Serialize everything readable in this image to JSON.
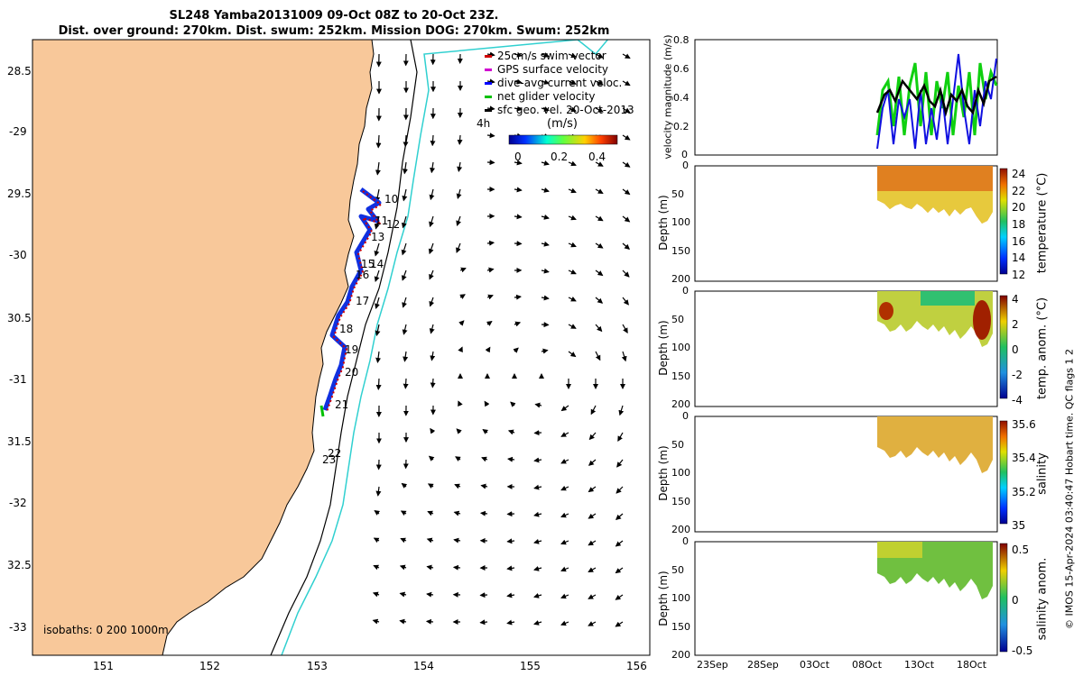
{
  "title": {
    "line1": "SL248 Yamba20131009 09-Oct 08Z to 20-Oct 23Z.",
    "line2": "Dist. over ground: 270km. Dist. swum: 252km. Mission DOG: 270km. Swum: 252km"
  },
  "map": {
    "lat_ticks": [
      "28.5",
      "-29",
      "29.5",
      "-30",
      "30.5",
      "-31",
      "31.5",
      "-32",
      "32.5",
      "-33"
    ],
    "lon_ticks": [
      "151",
      "152",
      "153",
      "154",
      "155",
      "156"
    ],
    "legend": [
      {
        "label": "25cm/s swim vector",
        "color": "#d00000"
      },
      {
        "label": "GPS surface velocity",
        "color": "#d000d0"
      },
      {
        "label": "dive-avg current veloc.",
        "color": "#0000ff"
      },
      {
        "label": "net glider velocity",
        "color": "#00c000"
      },
      {
        "label": "sfc geo. vel. 20-Oct-2013",
        "color": "#000000"
      }
    ],
    "colorbar": {
      "unit": "(m/s)",
      "ticks": [
        "0",
        "0.2",
        "0.4"
      ]
    },
    "label_4h": "4h",
    "isobaths_label": "isobaths: 0   200  1000m",
    "day_labels": [
      "10",
      "11",
      "12",
      "13",
      "14",
      "15",
      "16",
      "17",
      "18",
      "19",
      "20",
      "21",
      "22",
      "23"
    ],
    "colors": {
      "land": "#f8c89a",
      "track": "#1030e0",
      "isobath_200": "#000000",
      "isobath_1000": "#30d0d0"
    }
  },
  "velocity_panel": {
    "ylabel": "velocity magnitude (m/s)",
    "yticks": [
      "0.8",
      "0.6",
      "0.4",
      "0.2",
      "0"
    ]
  },
  "panels": [
    {
      "id": "temperature",
      "ylabel": "Depth (m)",
      "cbar_label": "temperature (°C)",
      "cbar_ticks": [
        "24",
        "22",
        "20",
        "18",
        "16",
        "14",
        "12"
      ],
      "depth_ticks": [
        "0",
        "50",
        "100",
        "150",
        "200"
      ]
    },
    {
      "id": "temp-anomaly",
      "ylabel": "Depth (m)",
      "cbar_label": "temp. anom. (°C)",
      "cbar_ticks": [
        "4",
        "2",
        "0",
        "-2",
        "-4"
      ],
      "depth_ticks": [
        "0",
        "50",
        "100",
        "150",
        "200"
      ]
    },
    {
      "id": "salinity",
      "ylabel": "Depth (m)",
      "cbar_label": "salinity",
      "cbar_ticks": [
        "35.6",
        "35.4",
        "35.2",
        "35"
      ],
      "depth_ticks": [
        "0",
        "50",
        "100",
        "150",
        "200"
      ]
    },
    {
      "id": "salinity-anomaly",
      "ylabel": "Depth (m)",
      "cbar_label": "salinity anom.",
      "cbar_ticks": [
        "0.5",
        "0",
        "-0.5"
      ],
      "depth_ticks": [
        "0",
        "50",
        "100",
        "150",
        "200"
      ]
    }
  ],
  "time_ticks": [
    "23Sep",
    "28Sep",
    "03Oct",
    "08Oct",
    "13Oct",
    "18Oct"
  ],
  "credit": "© IMOS 15-Apr-2024 03:40:47 Hobart time. QC flags 1  2"
}
